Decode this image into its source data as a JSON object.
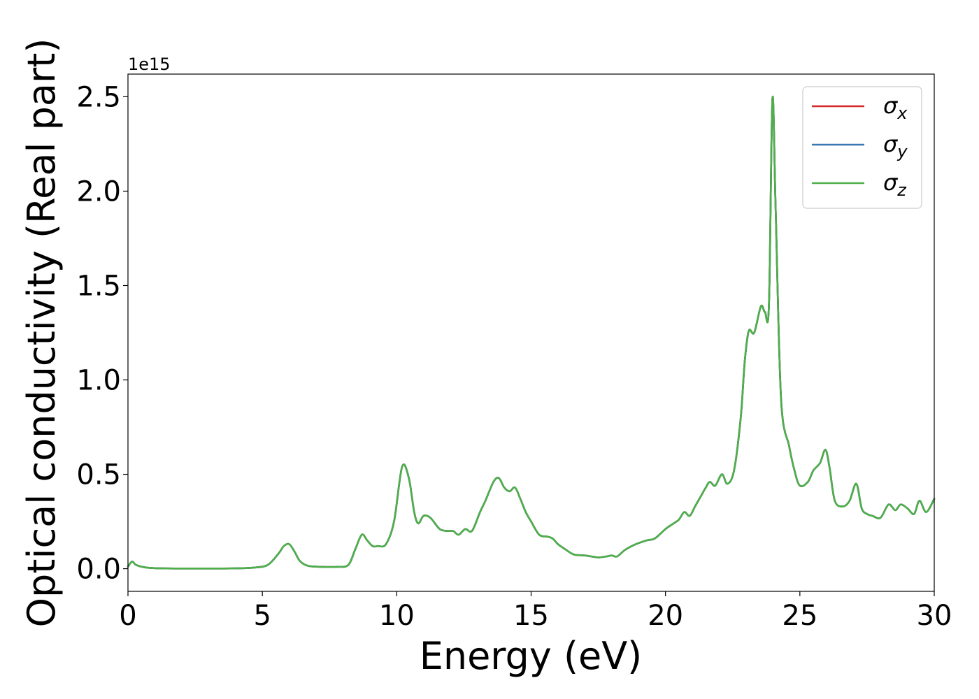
{
  "chart_data": {
    "type": "line",
    "title": "",
    "xlabel": "Energy (eV)",
    "ylabel": "Optical conductivity (Real part)",
    "y_offset_label": "1e15",
    "xlim": [
      0,
      30
    ],
    "ylim": [
      -0.12,
      2.62
    ],
    "x_ticks": [
      0,
      5,
      10,
      15,
      20,
      25,
      30
    ],
    "x_tick_labels": [
      "0",
      "5",
      "10",
      "15",
      "20",
      "25",
      "30"
    ],
    "y_ticks": [
      0.0,
      0.5,
      1.0,
      1.5,
      2.0,
      2.5
    ],
    "y_tick_labels": [
      "0.0",
      "0.5",
      "1.0",
      "1.5",
      "2.0",
      "2.5"
    ],
    "grid": false,
    "legend_position": "top-right",
    "x": [
      0,
      0.15,
      0.3,
      0.6,
      1,
      2,
      3,
      4,
      4.7,
      5.2,
      5.6,
      5.8,
      6.0,
      6.2,
      6.4,
      6.7,
      7.2,
      7.8,
      8.2,
      8.45,
      8.7,
      8.9,
      9.1,
      9.3,
      9.6,
      9.9,
      10.2,
      10.45,
      10.65,
      10.8,
      11.0,
      11.25,
      11.6,
      11.9,
      12.1,
      12.3,
      12.55,
      12.8,
      13.1,
      13.3,
      13.6,
      13.8,
      14.0,
      14.2,
      14.4,
      14.6,
      14.8,
      15.0,
      15.3,
      15.6,
      15.8,
      16.0,
      16.3,
      16.6,
      17.0,
      17.5,
      17.8,
      18.0,
      18.2,
      18.5,
      18.9,
      19.3,
      19.6,
      20.0,
      20.3,
      20.5,
      20.7,
      20.9,
      21.1,
      21.3,
      21.5,
      21.65,
      21.85,
      22.1,
      22.3,
      22.55,
      22.8,
      22.95,
      23.1,
      23.3,
      23.55,
      23.7,
      23.85,
      23.98,
      24.1,
      24.3,
      24.6,
      24.8,
      25.0,
      25.3,
      25.5,
      25.75,
      25.95,
      26.1,
      26.3,
      26.6,
      26.85,
      27.1,
      27.3,
      27.5,
      27.7,
      28.0,
      28.3,
      28.55,
      28.75,
      29.0,
      29.25,
      29.45,
      29.7,
      30.0
    ],
    "series": [
      {
        "name": "σx",
        "color": "#d62728",
        "values": [
          0.01,
          0.038,
          0.02,
          0.008,
          0.003,
          0.001,
          0.001,
          0.002,
          0.006,
          0.02,
          0.08,
          0.12,
          0.13,
          0.09,
          0.04,
          0.015,
          0.01,
          0.01,
          0.02,
          0.1,
          0.18,
          0.15,
          0.12,
          0.12,
          0.13,
          0.25,
          0.54,
          0.48,
          0.3,
          0.24,
          0.28,
          0.27,
          0.21,
          0.2,
          0.2,
          0.18,
          0.21,
          0.2,
          0.3,
          0.36,
          0.46,
          0.48,
          0.43,
          0.41,
          0.43,
          0.37,
          0.3,
          0.25,
          0.18,
          0.17,
          0.16,
          0.13,
          0.1,
          0.075,
          0.07,
          0.06,
          0.065,
          0.07,
          0.065,
          0.1,
          0.13,
          0.15,
          0.16,
          0.21,
          0.24,
          0.26,
          0.3,
          0.28,
          0.33,
          0.38,
          0.43,
          0.46,
          0.44,
          0.5,
          0.45,
          0.52,
          0.8,
          1.1,
          1.26,
          1.25,
          1.39,
          1.36,
          1.4,
          2.49,
          1.9,
          0.9,
          0.65,
          0.52,
          0.44,
          0.46,
          0.52,
          0.56,
          0.63,
          0.54,
          0.36,
          0.33,
          0.36,
          0.45,
          0.32,
          0.29,
          0.28,
          0.27,
          0.34,
          0.31,
          0.34,
          0.32,
          0.29,
          0.36,
          0.3,
          0.37
        ]
      },
      {
        "name": "σy",
        "color": "#3a78b0",
        "values": [
          0.01,
          0.038,
          0.02,
          0.008,
          0.003,
          0.001,
          0.001,
          0.002,
          0.006,
          0.02,
          0.08,
          0.12,
          0.13,
          0.09,
          0.04,
          0.015,
          0.01,
          0.01,
          0.02,
          0.1,
          0.18,
          0.15,
          0.12,
          0.12,
          0.13,
          0.25,
          0.54,
          0.48,
          0.3,
          0.24,
          0.28,
          0.27,
          0.21,
          0.2,
          0.2,
          0.18,
          0.21,
          0.2,
          0.3,
          0.36,
          0.46,
          0.48,
          0.43,
          0.41,
          0.43,
          0.37,
          0.3,
          0.25,
          0.18,
          0.17,
          0.16,
          0.13,
          0.1,
          0.075,
          0.07,
          0.06,
          0.065,
          0.07,
          0.065,
          0.1,
          0.13,
          0.15,
          0.16,
          0.21,
          0.24,
          0.26,
          0.3,
          0.28,
          0.33,
          0.38,
          0.43,
          0.46,
          0.44,
          0.5,
          0.45,
          0.52,
          0.8,
          1.1,
          1.26,
          1.25,
          1.39,
          1.36,
          1.4,
          2.49,
          1.9,
          0.9,
          0.65,
          0.52,
          0.44,
          0.46,
          0.52,
          0.56,
          0.63,
          0.54,
          0.36,
          0.33,
          0.36,
          0.45,
          0.32,
          0.29,
          0.28,
          0.27,
          0.34,
          0.31,
          0.34,
          0.32,
          0.29,
          0.36,
          0.3,
          0.37
        ]
      },
      {
        "name": "σz",
        "color": "#4daf4a",
        "values": [
          0.01,
          0.038,
          0.02,
          0.008,
          0.003,
          0.001,
          0.001,
          0.002,
          0.006,
          0.02,
          0.08,
          0.12,
          0.13,
          0.09,
          0.04,
          0.015,
          0.01,
          0.01,
          0.02,
          0.1,
          0.18,
          0.15,
          0.12,
          0.12,
          0.13,
          0.25,
          0.54,
          0.48,
          0.3,
          0.24,
          0.28,
          0.27,
          0.21,
          0.2,
          0.2,
          0.18,
          0.21,
          0.2,
          0.3,
          0.36,
          0.46,
          0.48,
          0.43,
          0.41,
          0.43,
          0.37,
          0.3,
          0.25,
          0.18,
          0.17,
          0.16,
          0.13,
          0.1,
          0.075,
          0.07,
          0.06,
          0.065,
          0.07,
          0.065,
          0.1,
          0.13,
          0.15,
          0.16,
          0.21,
          0.24,
          0.26,
          0.3,
          0.28,
          0.33,
          0.38,
          0.43,
          0.46,
          0.44,
          0.5,
          0.45,
          0.52,
          0.8,
          1.1,
          1.26,
          1.25,
          1.39,
          1.36,
          1.4,
          2.49,
          1.9,
          0.9,
          0.65,
          0.52,
          0.44,
          0.46,
          0.52,
          0.56,
          0.63,
          0.54,
          0.36,
          0.33,
          0.36,
          0.45,
          0.32,
          0.29,
          0.28,
          0.27,
          0.34,
          0.31,
          0.34,
          0.32,
          0.29,
          0.36,
          0.3,
          0.37
        ]
      }
    ],
    "legend": [
      {
        "symbol": "σ",
        "subscript": "x",
        "color": "#d62728"
      },
      {
        "symbol": "σ",
        "subscript": "y",
        "color": "#3a78b0"
      },
      {
        "symbol": "σ",
        "subscript": "z",
        "color": "#4daf4a"
      }
    ]
  }
}
